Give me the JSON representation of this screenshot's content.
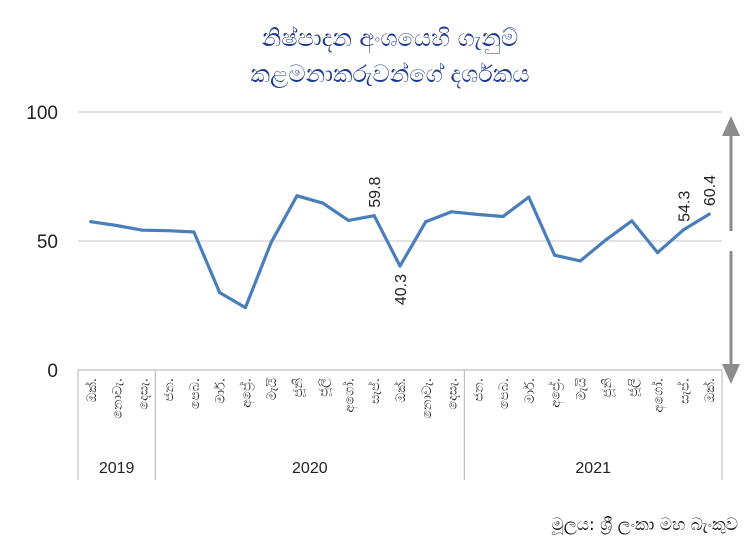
{
  "chart_data": {
    "type": "line",
    "title_lines": [
      "නිෂ්පාදන අංශයෙහි ගැනුම්",
      "කළමනාකරුවන්ගේ දර්ශකය"
    ],
    "source": "මූලය: ශ්‍රී ලංකා මහ බැංකුව",
    "ylim": [
      0,
      100
    ],
    "yticks": [
      0,
      50,
      100
    ],
    "grid": true,
    "categories": [
      "ඔක්.",
      "නොවැ.",
      "දෙසැ.",
      "ජන.",
      "පෙබ.",
      "මාර්.",
      "අප්‍රේ.",
      "මැයි",
      "ජූනි",
      "ජූලි",
      "අගෝ.",
      "සැප්.",
      "ඔක්.",
      "නොවැ.",
      "දෙසැ.",
      "ජන.",
      "පෙබ.",
      "මාර්.",
      "අප්‍රේ.",
      "මැයි",
      "ජූනි",
      "ජූලි",
      "අගෝ.",
      "සැප්.",
      "ඔක්."
    ],
    "years": [
      {
        "label": "2019",
        "start": 0,
        "end": 2
      },
      {
        "label": "2020",
        "start": 3,
        "end": 14
      },
      {
        "label": "2021",
        "start": 15,
        "end": 24
      }
    ],
    "series": [
      {
        "color": "#4a7ebb",
        "values": [
          57.5,
          56.0,
          54.2,
          54.0,
          53.5,
          30.0,
          24.2,
          49.5,
          67.5,
          64.7,
          58.0,
          59.8,
          40.3,
          57.5,
          61.3,
          60.3,
          59.5,
          67.0,
          44.5,
          42.3,
          50.5,
          57.8,
          45.5,
          54.3,
          60.4
        ]
      }
    ],
    "data_labels": [
      {
        "index": 11,
        "text": "59.8"
      },
      {
        "index": 12,
        "text": "40.3"
      },
      {
        "index": 23,
        "text": "54.3"
      },
      {
        "index": 24,
        "text": "60.4"
      }
    ],
    "threshold_marker": {
      "value": 50,
      "color": "#8c8c8c"
    }
  }
}
